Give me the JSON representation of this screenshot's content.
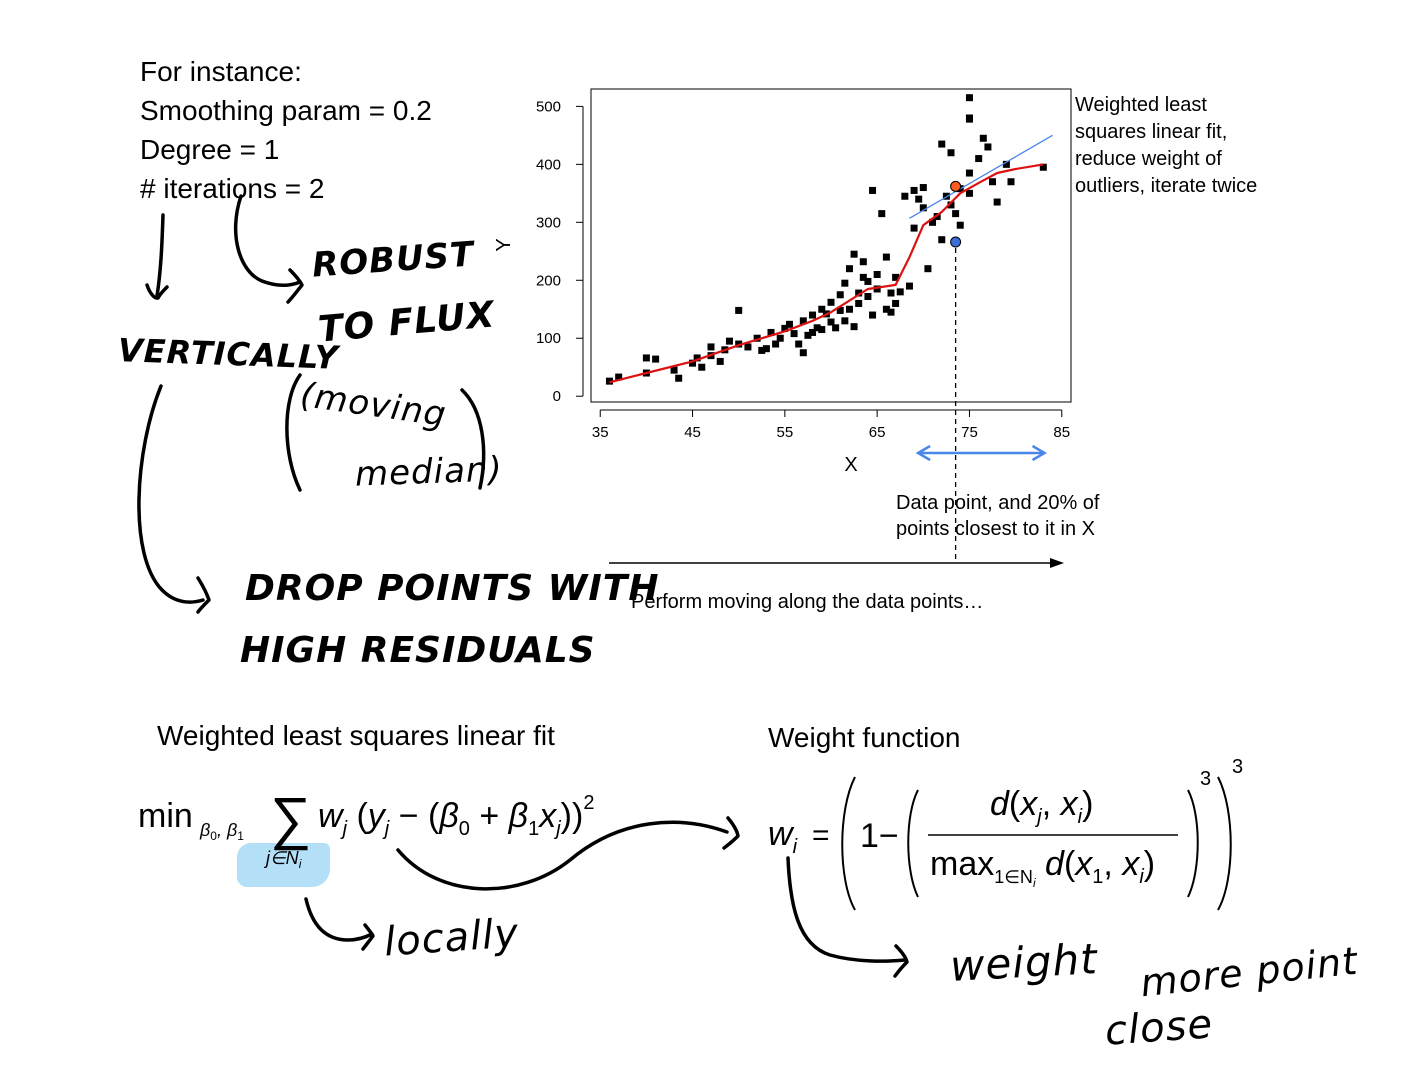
{
  "params": {
    "intro": "For instance:",
    "smoothing": "Smoothing param = 0.2",
    "degree": "Degree = 1",
    "iterations": "# iterations = 2"
  },
  "notes": {
    "fit": "Weighted least squares linear fit, reduce weight of outliers, iterate twice",
    "range": "Data point, and 20% of points closest to it in X",
    "moving": "Perform moving along the data points…"
  },
  "sections": {
    "wls_title": "Weighted least squares linear fit",
    "weight_title": "Weight function"
  },
  "handwritten": {
    "robust": "ROBUST",
    "to_flux": "TO FLUX",
    "moving": "(moving",
    "median": "median)",
    "vertically": "VERTICALLY",
    "drop": "DROP POINTS WITH",
    "high_residuals": "HIGH RESIDUALS",
    "locally": "locally",
    "weight": "weight",
    "more_point": "more point",
    "close": "close"
  },
  "formulas": {
    "wls": "min_{β0,β1} Σ_{j∈N_i} w_j (y_j − (β0 + β1 x_j))^2",
    "weight": "w_i = (1 − (d(x_j, x_i) / max_{l∈N_i} d(x_l, x_i))^3)^3"
  },
  "colors": {
    "points": "#000000",
    "loess": "#dd1111",
    "local_fit": "#4a86e8",
    "highlight_fit": "#ff5a1f",
    "highlight_raw": "#3b6fd8",
    "window_arrow": "#4a86e8",
    "sum_highlight": "#b3e0f7"
  },
  "chart_data": {
    "type": "scatter",
    "title": "",
    "xlabel": "X",
    "ylabel": "Y",
    "xlim": [
      34,
      86
    ],
    "ylim": [
      -10,
      530
    ],
    "xticks": [
      "35",
      "45",
      "55",
      "65",
      "75",
      "85"
    ],
    "yticks": [
      "0",
      "100",
      "200",
      "300",
      "400",
      "500"
    ],
    "grid": false,
    "points": [
      [
        36,
        26
      ],
      [
        37,
        33
      ],
      [
        40,
        40
      ],
      [
        40,
        66
      ],
      [
        41,
        64
      ],
      [
        43,
        45
      ],
      [
        43.5,
        31
      ],
      [
        45,
        57
      ],
      [
        45.5,
        66
      ],
      [
        46,
        50
      ],
      [
        47,
        70
      ],
      [
        47,
        85
      ],
      [
        48,
        60
      ],
      [
        48.5,
        80
      ],
      [
        49,
        95
      ],
      [
        50,
        90
      ],
      [
        50,
        148
      ],
      [
        51,
        85
      ],
      [
        52,
        100
      ],
      [
        52.5,
        79
      ],
      [
        53,
        82
      ],
      [
        53.5,
        110
      ],
      [
        54,
        90
      ],
      [
        54.5,
        100
      ],
      [
        55,
        117
      ],
      [
        55.5,
        124
      ],
      [
        56,
        108
      ],
      [
        56.5,
        90
      ],
      [
        57,
        75
      ],
      [
        57,
        130
      ],
      [
        57.5,
        105
      ],
      [
        58,
        110
      ],
      [
        58,
        140
      ],
      [
        58.5,
        118
      ],
      [
        59,
        115
      ],
      [
        59,
        150
      ],
      [
        59.5,
        142
      ],
      [
        60,
        128
      ],
      [
        60,
        162
      ],
      [
        60.5,
        118
      ],
      [
        61,
        148
      ],
      [
        61,
        175
      ],
      [
        61.5,
        130
      ],
      [
        61.5,
        195
      ],
      [
        62,
        150
      ],
      [
        62,
        220
      ],
      [
        62.5,
        120
      ],
      [
        62.5,
        245
      ],
      [
        63,
        160
      ],
      [
        63,
        178
      ],
      [
        63.5,
        205
      ],
      [
        63.5,
        232
      ],
      [
        64,
        172
      ],
      [
        64,
        198
      ],
      [
        64.5,
        140
      ],
      [
        64.5,
        355
      ],
      [
        65,
        185
      ],
      [
        65,
        210
      ],
      [
        65.5,
        315
      ],
      [
        66,
        150
      ],
      [
        66,
        240
      ],
      [
        66.5,
        145
      ],
      [
        66.5,
        178
      ],
      [
        67,
        160
      ],
      [
        67,
        205
      ],
      [
        67.5,
        180
      ],
      [
        68,
        345
      ],
      [
        68.5,
        190
      ],
      [
        69,
        355
      ],
      [
        69,
        290
      ],
      [
        69.5,
        340
      ],
      [
        70,
        360
      ],
      [
        70,
        325
      ],
      [
        70.5,
        220
      ],
      [
        71,
        300
      ],
      [
        71.5,
        310
      ],
      [
        72,
        270
      ],
      [
        72,
        435
      ],
      [
        72.5,
        345
      ],
      [
        73,
        420
      ],
      [
        73,
        330
      ],
      [
        73.5,
        315
      ],
      [
        74,
        295
      ],
      [
        74,
        358
      ],
      [
        75,
        515
      ],
      [
        75,
        480
      ],
      [
        75,
        478
      ],
      [
        75,
        385
      ],
      [
        75,
        350
      ],
      [
        76,
        410
      ],
      [
        76.5,
        445
      ],
      [
        77,
        430
      ],
      [
        77.5,
        370
      ],
      [
        78,
        335
      ],
      [
        79,
        400
      ],
      [
        79.5,
        370
      ],
      [
        83,
        395
      ]
    ],
    "loess_curve": [
      [
        36,
        24
      ],
      [
        40,
        40
      ],
      [
        45,
        60
      ],
      [
        50,
        88
      ],
      [
        55,
        112
      ],
      [
        58,
        130
      ],
      [
        60,
        145
      ],
      [
        62,
        165
      ],
      [
        64,
        185
      ],
      [
        67,
        192
      ],
      [
        68.5,
        240
      ],
      [
        70,
        295
      ],
      [
        72,
        318
      ],
      [
        74,
        350
      ],
      [
        76,
        368
      ],
      [
        78,
        385
      ],
      [
        80,
        392
      ],
      [
        83,
        400
      ]
    ],
    "local_fit_line": [
      [
        68.5,
        307
      ],
      [
        84,
        450
      ]
    ],
    "highlight_fit_point": [
      73.5,
      362
    ],
    "highlight_raw_point": [
      73.5,
      266
    ],
    "current_x": 73.5,
    "window": [
      69,
      84
    ]
  }
}
